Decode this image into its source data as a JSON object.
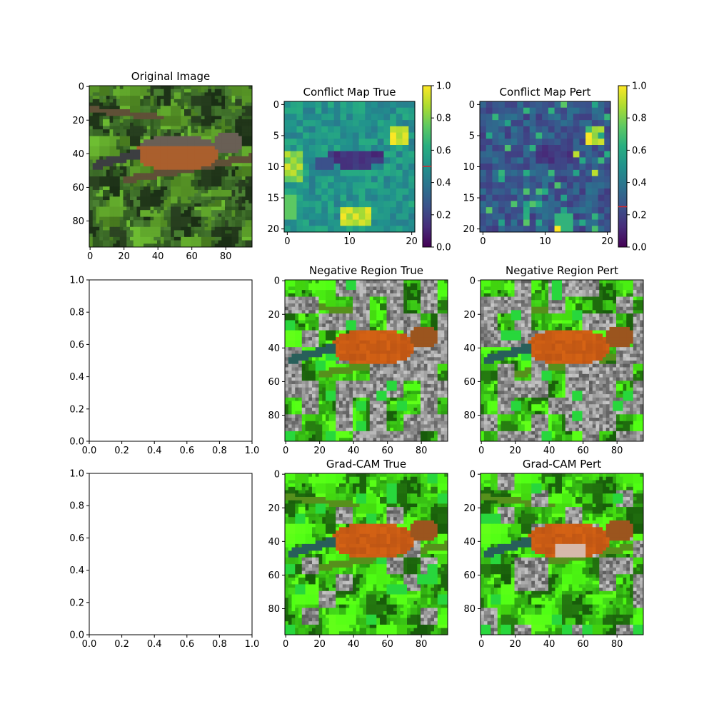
{
  "figure": {
    "background": "#ffffff"
  },
  "panels": [
    {
      "id": "original",
      "kind": "image",
      "title": "Original Image",
      "x_ticks": [
        0,
        20,
        40,
        60,
        80
      ],
      "y_ticks": [
        0,
        20,
        40,
        60,
        80
      ],
      "extent": [
        96,
        96
      ]
    },
    {
      "id": "conflict-true",
      "kind": "heatmap",
      "title": "Conflict Map True",
      "x_ticks": [
        0,
        10,
        20
      ],
      "y_ticks": [
        0,
        5,
        10,
        15,
        20
      ],
      "extent": [
        21,
        21
      ],
      "colorbar": {
        "ticks": [
          "0.0",
          "0.2",
          "0.4",
          "0.6",
          "0.8",
          "1.0"
        ],
        "marker": 0.5,
        "marker_color": "#d62728"
      },
      "base": 0.52,
      "features": "true"
    },
    {
      "id": "conflict-pert",
      "kind": "heatmap",
      "title": "Conflict Map Pert",
      "x_ticks": [
        0,
        10,
        20
      ],
      "y_ticks": [
        0,
        5,
        10,
        15,
        20
      ],
      "extent": [
        21,
        21
      ],
      "colorbar": {
        "ticks": [
          "0.0",
          "0.2",
          "0.4",
          "0.6",
          "0.8",
          "1.0"
        ],
        "marker": 0.25,
        "marker_color": "#d62728"
      },
      "base": 0.28,
      "features": "pert"
    },
    {
      "id": "empty-1",
      "kind": "empty",
      "title": "",
      "x_ticks": [
        "0.0",
        "0.2",
        "0.4",
        "0.6",
        "0.8",
        "1.0"
      ],
      "y_ticks": [
        "0.0",
        "0.2",
        "0.4",
        "0.6",
        "0.8",
        "1.0"
      ]
    },
    {
      "id": "negative-true",
      "kind": "overlay",
      "title": "Negative Region True",
      "x_ticks": [
        0,
        20,
        40,
        60,
        80
      ],
      "y_ticks": [
        0,
        20,
        40,
        60,
        80
      ],
      "extent": [
        96,
        96
      ],
      "gray_strength": 0.55,
      "seed": 11
    },
    {
      "id": "negative-pert",
      "kind": "overlay",
      "title": "Negative Region Pert",
      "x_ticks": [
        0,
        20,
        40,
        60,
        80
      ],
      "y_ticks": [
        0,
        20,
        40,
        60,
        80
      ],
      "extent": [
        96,
        96
      ],
      "gray_strength": 0.65,
      "seed": 23
    },
    {
      "id": "empty-2",
      "kind": "empty",
      "title": "",
      "x_ticks": [
        "0.0",
        "0.2",
        "0.4",
        "0.6",
        "0.8",
        "1.0"
      ],
      "y_ticks": [
        "0.0",
        "0.2",
        "0.4",
        "0.6",
        "0.8",
        "1.0"
      ]
    },
    {
      "id": "gradcam-true",
      "kind": "overlay",
      "title": "Grad-CAM True",
      "x_ticks": [
        0,
        20,
        40,
        60,
        80
      ],
      "y_ticks": [
        0,
        20,
        40,
        60,
        80
      ],
      "extent": [
        96,
        96
      ],
      "gray_strength": 0.12,
      "seed": 37
    },
    {
      "id": "gradcam-pert",
      "kind": "overlay",
      "title": "Grad-CAM Pert",
      "x_ticks": [
        0,
        20,
        40,
        60,
        80
      ],
      "y_ticks": [
        0,
        20,
        40,
        60,
        80
      ],
      "extent": [
        96,
        96
      ],
      "gray_strength": 0.3,
      "seed": 41,
      "pale_belly": true
    }
  ],
  "chart_data": [
    {
      "type": "heatmap",
      "title": "Conflict Map True",
      "grid_size": [
        21,
        21
      ],
      "xlim": [
        0,
        20
      ],
      "ylim": [
        20,
        0
      ],
      "color_range": [
        0.0,
        1.0
      ],
      "colormap": "viridis",
      "colorbar_marker": 0.5
    },
    {
      "type": "heatmap",
      "title": "Conflict Map Pert",
      "grid_size": [
        21,
        21
      ],
      "xlim": [
        0,
        20
      ],
      "ylim": [
        20,
        0
      ],
      "color_range": [
        0.0,
        1.0
      ],
      "colormap": "viridis",
      "colorbar_marker": 0.25
    }
  ]
}
